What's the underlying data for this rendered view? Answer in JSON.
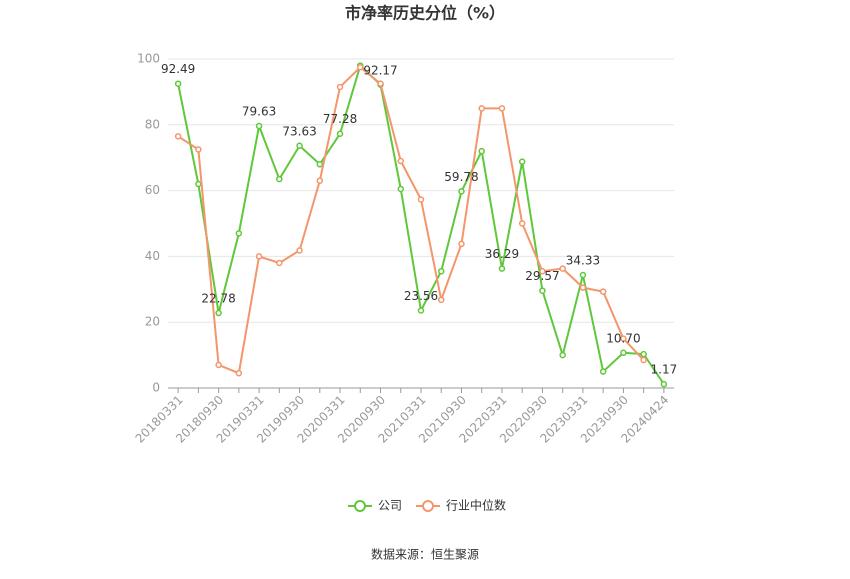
{
  "chart_data": {
    "type": "line",
    "title": "市净率历史分位（%）",
    "source": "数据来源：恒生聚源",
    "categories": [
      "20180331",
      null,
      "20180930",
      null,
      "20190331",
      null,
      "20190930",
      null,
      "20200331",
      null,
      "20200930",
      null,
      "20210331",
      null,
      "20210930",
      null,
      "20220331",
      null,
      "20220930",
      null,
      "20230331",
      null,
      "20230930",
      null,
      "20240424"
    ],
    "series": [
      {
        "name": "公司",
        "color": "#5fc83a",
        "values": [
          92.49,
          62,
          22.78,
          47,
          79.63,
          63.5,
          73.63,
          68,
          77.28,
          98,
          92.17,
          60.5,
          23.56,
          35.5,
          59.78,
          72,
          36.29,
          68.8,
          29.57,
          10,
          34.33,
          5,
          10.7,
          10.3,
          1.17
        ],
        "value_labels": [
          "92.49",
          null,
          "22.78",
          null,
          "79.63",
          null,
          "73.63",
          null,
          "77.28",
          null,
          "92.17",
          null,
          "23.56",
          null,
          "59.78",
          null,
          "36.29",
          null,
          "29.57",
          null,
          "34.33",
          null,
          "10.70",
          null,
          "1.17"
        ]
      },
      {
        "name": "行业中位数",
        "color": "#f4956b",
        "values": [
          76.5,
          72.5,
          7,
          4.5,
          40,
          38,
          41.8,
          63,
          91.5,
          97.5,
          92.5,
          69,
          57.3,
          26.8,
          43.8,
          85,
          85,
          50,
          35.5,
          36.3,
          30.5,
          29.3,
          15,
          8.5,
          null
        ]
      }
    ],
    "ylim": [
      0,
      100
    ],
    "yticks": [
      0,
      20,
      40,
      60,
      80,
      100
    ],
    "grid": true
  }
}
